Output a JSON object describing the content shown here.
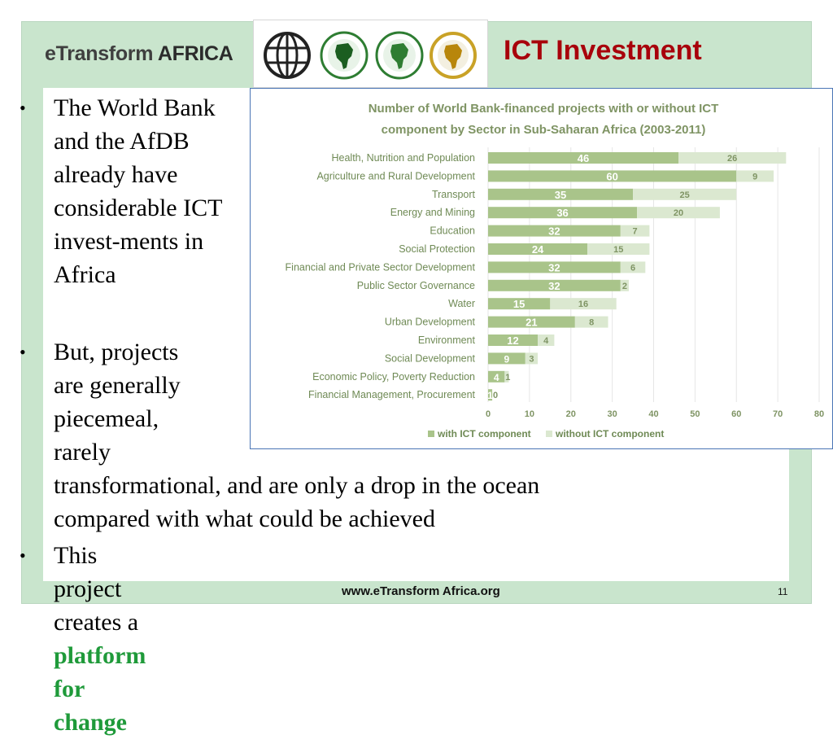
{
  "header": {
    "brand_part1": "eTransform ",
    "brand_part2": "AFRICA",
    "title": "ICT Investment"
  },
  "logos": [
    "globe-logo",
    "afdb-africa-logo",
    "african-development-fund-logo",
    "african-union-logo"
  ],
  "bullets": {
    "b1": "The World Bank and the AfDB already have considerable ICT invest-ments in Africa",
    "b2_lines": [
      "But, projects",
      "are generally",
      "piecemeal,",
      "rarely",
      "transformational, and are only a drop in the ocean",
      "compared with what could be achieved"
    ],
    "b3_prefix": "This project creates a ",
    "b3_highlight": "platform for change"
  },
  "footer": {
    "url": "www.eTransform Africa.org",
    "page": "11"
  },
  "colors": {
    "with_ict": "#a9c48a",
    "without_ict": "#dbe8d0",
    "title_red": "#a8000b",
    "highlight_green": "#1f9a3a",
    "frame_green": "#c9e5cd"
  },
  "chart_data": {
    "type": "bar",
    "orientation": "horizontal",
    "stacked": true,
    "title": "Number of World Bank-financed projects with or without ICT component by Sector in Sub-Saharan Africa (2003-2011)",
    "categories": [
      "Health, Nutrition and Population",
      "Agriculture and Rural Development",
      "Transport",
      "Energy and Mining",
      "Education",
      "Social Protection",
      "Financial and Private Sector Development",
      "Public Sector Governance",
      "Water",
      "Urban Development",
      "Environment",
      "Social Development",
      "Economic Policy, Poverty Reduction",
      "Financial Management, Procurement"
    ],
    "series": [
      {
        "name": "with ICT component",
        "values": [
          46,
          60,
          35,
          36,
          32,
          24,
          32,
          32,
          15,
          21,
          12,
          9,
          4,
          1
        ]
      },
      {
        "name": "without ICT component",
        "values": [
          26,
          9,
          25,
          20,
          7,
          15,
          6,
          2,
          16,
          8,
          4,
          3,
          1,
          0
        ]
      }
    ],
    "xlim": [
      0,
      80
    ],
    "xticks": [
      0,
      10,
      20,
      30,
      40,
      50,
      60,
      70,
      80
    ],
    "grid": true,
    "legend": "bottom"
  }
}
